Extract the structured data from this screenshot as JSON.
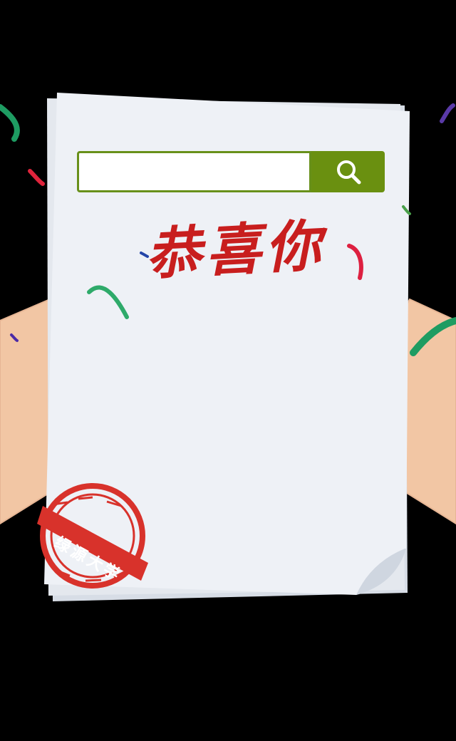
{
  "search": {
    "value": "",
    "placeholder": ""
  },
  "icons": {
    "search_button": "search-icon"
  },
  "headline": "恭喜你",
  "stamp": {
    "text": "绿源大学"
  },
  "colors": {
    "background": "#000000",
    "paper": "#eef1f6",
    "search_border": "#68901a",
    "search_button": "#6a9010",
    "headline": "#c81e1e",
    "stamp": "#d8322b",
    "skin": "#f2c6a4"
  }
}
